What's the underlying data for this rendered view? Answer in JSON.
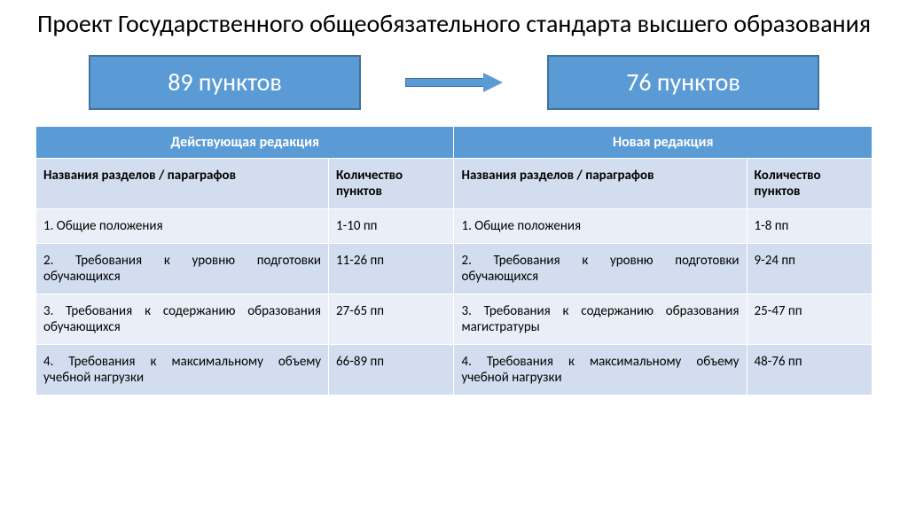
{
  "title": "Проект Государственного общеобязательного стандарта высшего образования",
  "left_box": "89 пунктов",
  "right_box": "76 пунктов",
  "colors": {
    "accent": "#5b9bd5",
    "accent_border": "#41719c",
    "row_odd": "#eaeff7",
    "row_even": "#d2deef",
    "text": "#000000",
    "white": "#ffffff"
  },
  "fonts": {
    "title_size": 28,
    "box_size": 28,
    "header_size": 16,
    "cell_size": 15
  },
  "table": {
    "group_headers": [
      "Действующая редакция",
      "Новая редакция"
    ],
    "col_headers": {
      "left_name": "Названия разделов / параграфов",
      "left_count": "Количество пунктов",
      "right_name": "Названия разделов / параграфов",
      "right_count": "Количество пунктов"
    },
    "rows": [
      {
        "ln": "1. Общие положения",
        "lc": "1-10 пп",
        "rn": "1. Общие положения",
        "rc": "1-8 пп"
      },
      {
        "ln": "2. Требования к уровню подготовки обучающихся",
        "lc": "11-26 пп",
        "rn": "2. Требования к уровню подготовки обучающихся",
        "rc": "9-24 пп"
      },
      {
        "ln": "3. Требования к содержанию образования обучающихся",
        "lc": "27-65 пп",
        "rn": "3. Требования к содержанию образования магистратуры",
        "rc": "25-47 пп"
      },
      {
        "ln": "4. Требования к максимальному объему учебной нагрузки",
        "lc": "66-89 пп",
        "rn": "4. Требования к максимальному объему учебной нагрузки",
        "rc": "48-76 пп"
      }
    ]
  }
}
